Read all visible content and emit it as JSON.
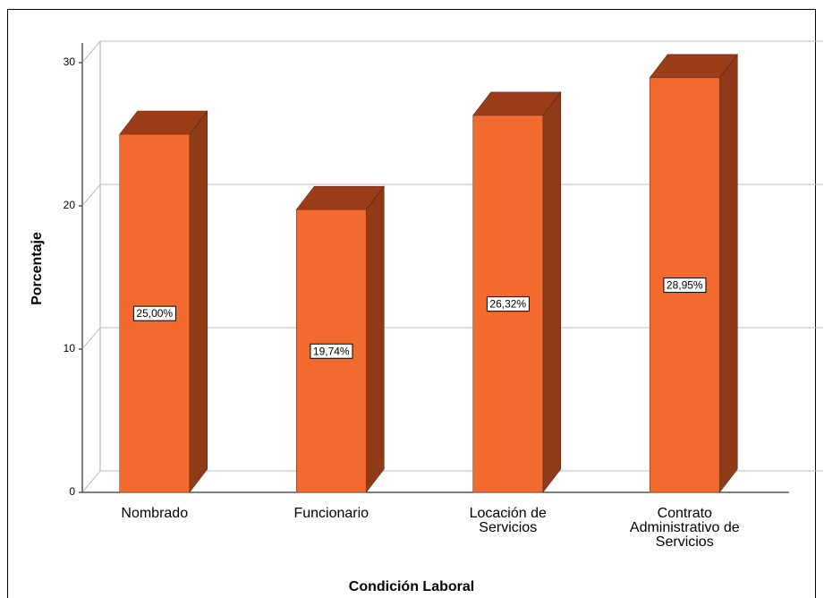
{
  "chart_data": {
    "type": "bar3d",
    "x_label": "Condición Laboral",
    "y_label": "Porcentaje",
    "categories": [
      "Nombrado",
      "Funcionario",
      "Locación de Servicios",
      "Contrato Administrativo de Servicios"
    ],
    "values": [
      25.0,
      19.74,
      26.32,
      28.95
    ],
    "value_labels": [
      "25,00%",
      "19,74%",
      "26,32%",
      "28,95%"
    ],
    "color": "#f26a2e",
    "ylim": [
      0,
      30
    ],
    "yticks": [
      0,
      10,
      20,
      30
    ],
    "grid": true
  }
}
